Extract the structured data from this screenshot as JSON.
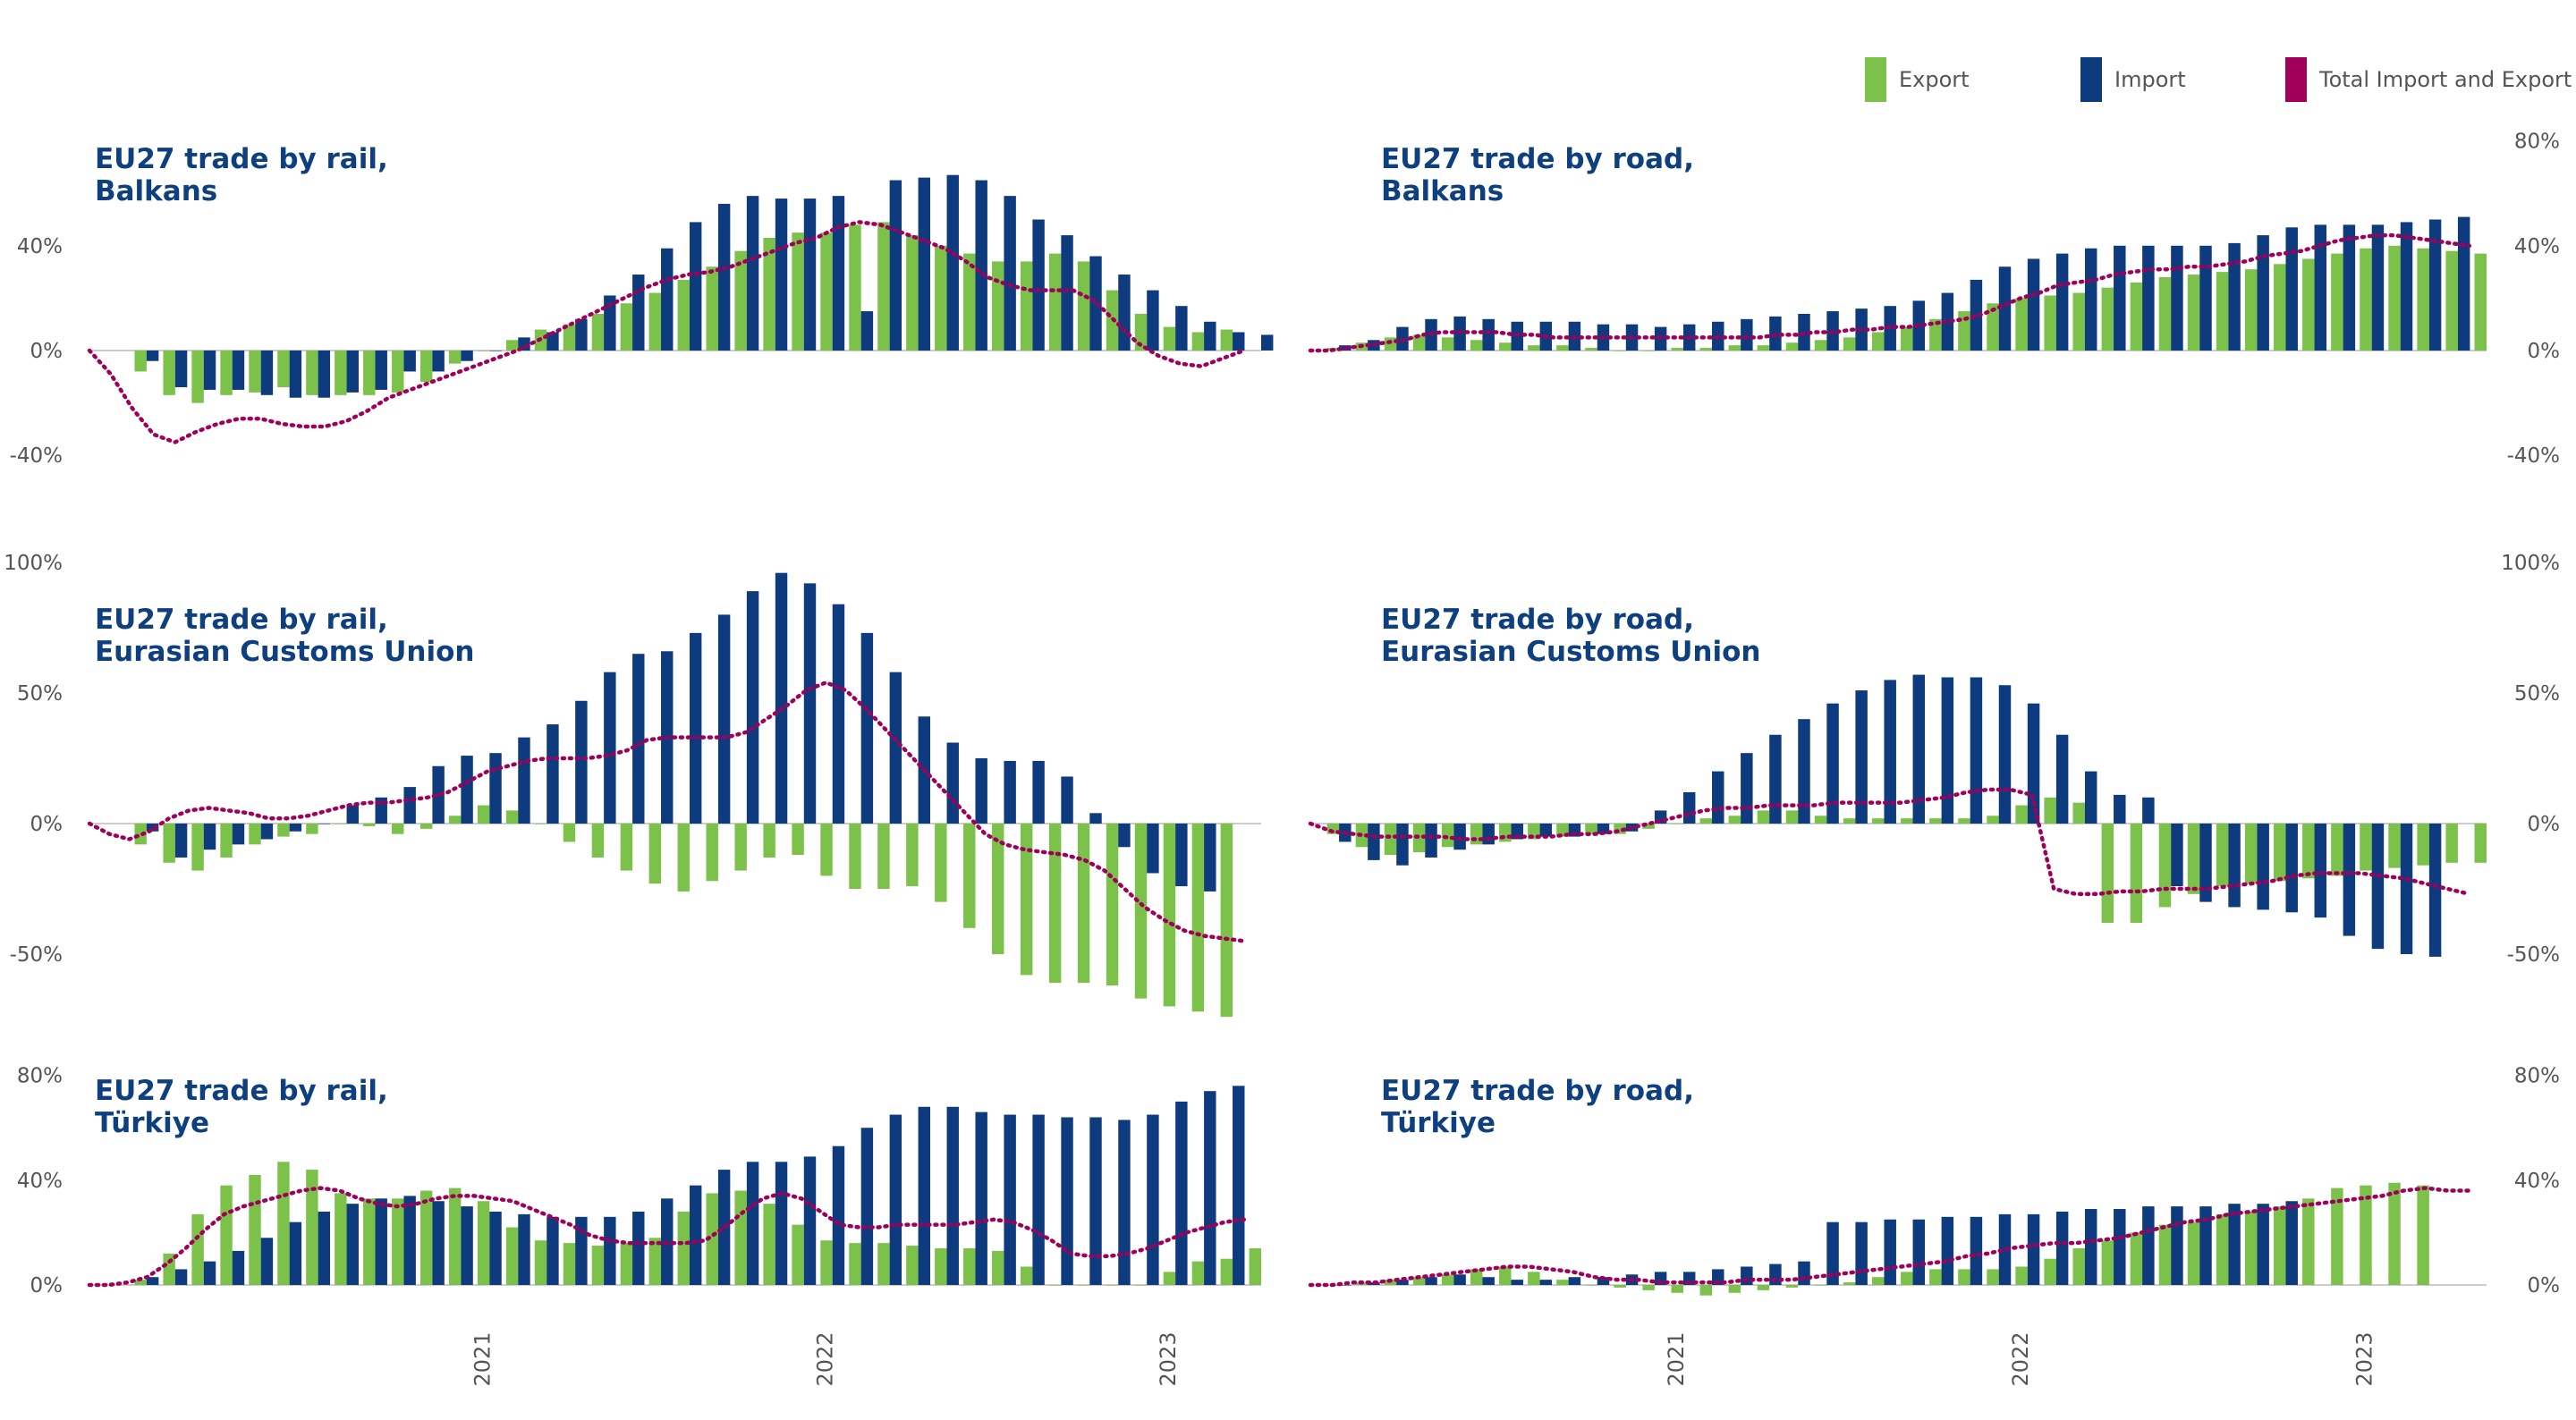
{
  "legend": {
    "export_label": "Export",
    "import_label": "Import",
    "total_label": "Total Import and Export"
  },
  "colors": {
    "export": "#7cc24a",
    "import": "#0d3b7d",
    "total": "#a0005a",
    "title": "#0e3f7e",
    "tick": "#555555",
    "zero_line": "#cccccc"
  },
  "x_axis": {
    "tick_labels": [
      "2021",
      "2022",
      "2023"
    ],
    "tick_positions": [
      12.5,
      24.5,
      36.5
    ]
  },
  "chart_data": [
    {
      "type": "bar",
      "title_line1": "EU27 trade by rail,",
      "title_line2": "Balkans",
      "y_axis_side": "left",
      "ylim": [
        -40,
        80
      ],
      "y_ticks": [
        -40,
        0,
        40
      ],
      "y_tick_labels": [
        "-40%",
        "0%",
        "40%"
      ],
      "export": [
        -8,
        -17,
        -20,
        -17,
        -16,
        -14,
        -17,
        -17,
        -17,
        -16,
        -12,
        -5,
        0,
        4,
        8,
        10,
        14,
        18,
        22,
        27,
        32,
        38,
        43,
        45,
        45,
        48,
        49,
        44,
        40,
        37,
        34,
        34,
        37,
        34,
        23,
        14,
        9,
        7,
        8
      ],
      "import": [
        -4,
        -14,
        -15,
        -15,
        -17,
        -18,
        -18,
        -16,
        -15,
        -8,
        -8,
        -4,
        0,
        5,
        7,
        12,
        21,
        29,
        39,
        49,
        56,
        59,
        58,
        58,
        59,
        15,
        65,
        66,
        67,
        65,
        59,
        50,
        44,
        36,
        29,
        23,
        17,
        11,
        7,
        6
      ],
      "total": [
        0,
        -9,
        -22,
        -32,
        -35,
        -31,
        -28,
        -26,
        -26,
        -28,
        -29,
        -29,
        -27,
        -23,
        -18,
        -15,
        -12,
        -9,
        -6,
        -3,
        0,
        4,
        8,
        12,
        16,
        20,
        24,
        27,
        29,
        30,
        32,
        35,
        38,
        41,
        43,
        47,
        49,
        48,
        45,
        42,
        39,
        34,
        28,
        25,
        23,
        23,
        23,
        19,
        11,
        3,
        -2,
        -5,
        -6,
        -3,
        0
      ]
    },
    {
      "type": "bar",
      "title_line1": "EU27 trade by road,",
      "title_line2": "Balkans",
      "y_axis_side": "right",
      "ylim": [
        -40,
        80
      ],
      "y_ticks": [
        -40,
        0,
        40,
        80
      ],
      "y_tick_labels": [
        "-40%",
        "0%",
        "40%",
        "80%"
      ],
      "export": [
        1,
        3,
        5,
        6,
        5,
        4,
        3,
        2,
        2,
        1,
        0,
        0,
        1,
        1,
        2,
        2,
        3,
        4,
        5,
        7,
        9,
        12,
        15,
        18,
        20,
        21,
        22,
        24,
        26,
        28,
        29,
        30,
        31,
        33,
        35,
        37,
        39,
        40,
        39,
        38,
        37
      ],
      "import": [
        2,
        4,
        9,
        12,
        13,
        12,
        11,
        11,
        11,
        10,
        10,
        9,
        10,
        11,
        12,
        13,
        14,
        15,
        16,
        17,
        19,
        22,
        27,
        32,
        35,
        37,
        39,
        40,
        40,
        40,
        40,
        41,
        44,
        47,
        48,
        48,
        48,
        49,
        50,
        51
      ],
      "total": [
        0,
        0,
        1,
        2,
        3,
        4,
        6,
        7,
        7,
        7,
        7,
        6,
        6,
        5,
        5,
        5,
        5,
        5,
        5,
        5,
        5,
        5,
        5,
        5,
        5,
        6,
        6,
        7,
        7,
        8,
        8,
        9,
        9,
        10,
        11,
        12,
        14,
        17,
        20,
        22,
        25,
        26,
        27,
        29,
        30,
        31,
        31,
        32,
        32,
        33,
        34,
        36,
        37,
        38,
        40,
        42,
        43,
        44,
        44,
        43,
        42,
        41,
        40
      ]
    },
    {
      "type": "bar",
      "title_line1": "EU27 trade by rail,",
      "title_line2": "Eurasian Customs Union",
      "y_axis_side": "left",
      "ylim": [
        -80,
        100
      ],
      "y_ticks": [
        -50,
        0,
        50,
        100
      ],
      "y_tick_labels": [
        "-50%",
        "0%",
        "50%",
        "100%"
      ],
      "export": [
        -8,
        -15,
        -18,
        -13,
        -8,
        -5,
        -4,
        0,
        -1,
        -4,
        -2,
        3,
        7,
        5,
        0,
        -7,
        -13,
        -18,
        -23,
        -26,
        -22,
        -18,
        -13,
        -12,
        -20,
        -25,
        -25,
        -24,
        -30,
        -40,
        -50,
        -58,
        -61,
        -61,
        -62,
        -67,
        -70,
        -72,
        -74
      ],
      "import": [
        -3,
        -13,
        -10,
        -8,
        -6,
        -3,
        0,
        7,
        10,
        14,
        22,
        26,
        27,
        33,
        38,
        47,
        58,
        65,
        66,
        73,
        80,
        89,
        96,
        92,
        84,
        73,
        58,
        41,
        31,
        25,
        24,
        24,
        18,
        4,
        -9,
        -19,
        -24,
        -26
      ],
      "total": [
        0,
        -4,
        -6,
        -3,
        2,
        5,
        6,
        5,
        4,
        2,
        2,
        3,
        5,
        7,
        8,
        8,
        9,
        10,
        12,
        16,
        20,
        22,
        24,
        25,
        25,
        25,
        26,
        28,
        32,
        33,
        33,
        33,
        33,
        35,
        40,
        45,
        51,
        54,
        51,
        44,
        36,
        28,
        20,
        12,
        4,
        -4,
        -8,
        -10,
        -11,
        -12,
        -14,
        -18,
        -25,
        -32,
        -37,
        -41,
        -43,
        -44,
        -45
      ]
    },
    {
      "type": "bar",
      "title_line1": "EU27 trade by road,",
      "title_line2": "Eurasian Customs Union",
      "y_axis_side": "right",
      "ylim": [
        -80,
        100
      ],
      "y_ticks": [
        -50,
        0,
        50,
        100
      ],
      "y_tick_labels": [
        "-50%",
        "0%",
        "50%",
        "100%"
      ],
      "export": [
        -4,
        -9,
        -12,
        -11,
        -9,
        -8,
        -7,
        -6,
        -5,
        -4,
        -4,
        -2,
        0,
        2,
        3,
        5,
        5,
        3,
        2,
        2,
        2,
        2,
        2,
        3,
        7,
        10,
        8,
        -38,
        -38,
        -32,
        -27,
        -24,
        -23,
        -22,
        -21,
        -20,
        -18,
        -17,
        -16,
        -15,
        -15
      ],
      "import": [
        -7,
        -14,
        -16,
        -13,
        -10,
        -8,
        -6,
        -5,
        -5,
        -4,
        -3,
        5,
        12,
        20,
        27,
        34,
        40,
        46,
        51,
        55,
        57,
        56,
        56,
        53,
        46,
        34,
        20,
        11,
        10,
        -24,
        -30,
        -32,
        -33,
        -34,
        -36,
        -43,
        -48,
        -50,
        -51
      ],
      "total": [
        0,
        -3,
        -4,
        -5,
        -5,
        -5,
        -5,
        -6,
        -6,
        -5,
        -5,
        -5,
        -4,
        -4,
        -3,
        -1,
        1,
        3,
        5,
        6,
        6,
        7,
        7,
        7,
        8,
        8,
        8,
        8,
        9,
        10,
        12,
        13,
        13,
        11,
        -25,
        -27,
        -27,
        -26,
        -26,
        -25,
        -25,
        -25,
        -24,
        -23,
        -22,
        -20,
        -19,
        -19,
        -19,
        -20,
        -21,
        -23,
        -25,
        -27
      ]
    },
    {
      "type": "bar",
      "title_line1": "EU27 trade by rail,",
      "title_line2": "Türkiye",
      "y_axis_side": "left",
      "ylim": [
        0,
        80
      ],
      "y_ticks": [
        0,
        40,
        80
      ],
      "y_tick_labels": [
        "0%",
        "40%",
        "80%"
      ],
      "export": [
        2,
        12,
        27,
        38,
        42,
        47,
        44,
        35,
        33,
        33,
        36,
        37,
        32,
        22,
        17,
        16,
        15,
        16,
        18,
        28,
        35,
        36,
        31,
        23,
        17,
        16,
        16,
        15,
        14,
        14,
        13,
        7,
        0,
        0,
        0,
        0,
        5,
        9,
        10,
        14
      ],
      "import": [
        3,
        6,
        9,
        13,
        18,
        24,
        28,
        31,
        33,
        34,
        32,
        30,
        28,
        27,
        26,
        26,
        26,
        28,
        33,
        38,
        44,
        47,
        47,
        49,
        53,
        60,
        65,
        68,
        68,
        66,
        65,
        65,
        64,
        64,
        63,
        65,
        70,
        74,
        76
      ],
      "total": [
        0,
        0,
        1,
        3,
        8,
        14,
        21,
        27,
        30,
        32,
        34,
        36,
        37,
        36,
        33,
        31,
        30,
        31,
        33,
        34,
        34,
        33,
        32,
        29,
        26,
        23,
        19,
        17,
        16,
        16,
        16,
        16,
        17,
        22,
        28,
        33,
        35,
        33,
        28,
        23,
        22,
        22,
        23,
        23,
        23,
        23,
        24,
        25,
        24,
        21,
        17,
        12,
        11,
        11,
        12,
        14,
        17,
        20,
        22,
        24,
        25
      ]
    },
    {
      "type": "bar",
      "title_line1": "EU27 trade by road,",
      "title_line2": "Türkiye",
      "y_axis_side": "right",
      "ylim": [
        0,
        80
      ],
      "y_ticks": [
        0,
        40,
        80
      ],
      "y_tick_labels": [
        "0%",
        "40%",
        "80%"
      ],
      "export": [
        0,
        1,
        2,
        3,
        4,
        6,
        7,
        5,
        2,
        0,
        -1,
        -2,
        -3,
        -4,
        -3,
        -2,
        -1,
        0,
        1,
        3,
        5,
        6,
        6,
        6,
        7,
        10,
        14,
        17,
        20,
        23,
        24,
        27,
        28,
        30,
        33,
        37,
        38,
        39,
        38
      ],
      "import": [
        0,
        1,
        2,
        3,
        4,
        3,
        2,
        2,
        3,
        3,
        4,
        5,
        5,
        6,
        7,
        8,
        9,
        24,
        24,
        25,
        25,
        26,
        26,
        27,
        27,
        28,
        29,
        29,
        30,
        30,
        30,
        31,
        31,
        32
      ],
      "total": [
        0,
        0,
        1,
        1,
        2,
        3,
        4,
        5,
        6,
        7,
        7,
        6,
        5,
        3,
        2,
        2,
        1,
        1,
        1,
        1,
        2,
        2,
        2,
        3,
        4,
        5,
        6,
        7,
        8,
        9,
        11,
        12,
        14,
        15,
        16,
        16,
        17,
        18,
        20,
        22,
        24,
        25,
        27,
        28,
        29,
        30,
        31,
        32,
        33,
        34,
        36,
        37,
        36,
        36
      ]
    }
  ]
}
